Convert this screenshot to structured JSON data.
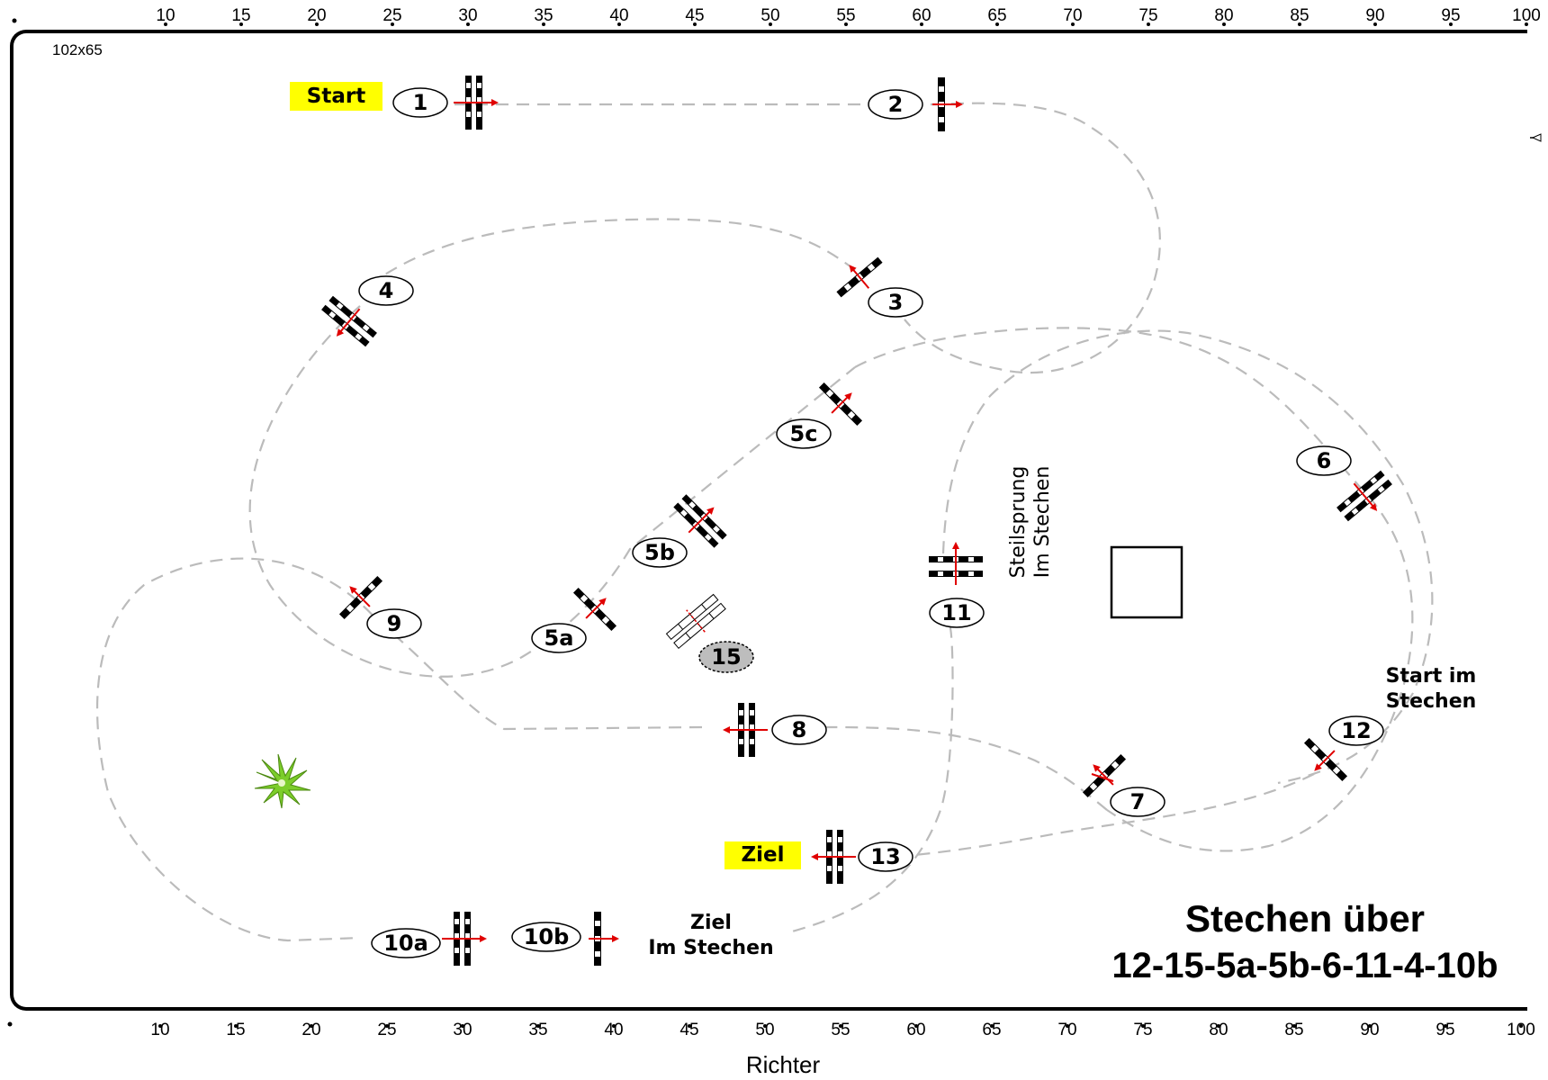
{
  "arena": {
    "size_label": "102x65",
    "start_label": "Start",
    "ziel_label": "Ziel",
    "judge_label": "Richter",
    "title_line1": "Stechen über",
    "title_line2": "12-15-5a-5b-6-11-4-10b",
    "note_ziel_line1": "Ziel",
    "note_ziel_line2": "Im Stechen",
    "note_start_line1": "Start im",
    "note_start_line2": "Stechen",
    "note_steil_line1": "Steilsprung",
    "note_steil_line2": "Im Stechen"
  },
  "ruler_top": [
    "10",
    "15",
    "20",
    "25",
    "30",
    "35",
    "40",
    "45",
    "50",
    "55",
    "60",
    "65",
    "70",
    "75",
    "80",
    "85",
    "90",
    "95",
    "100"
  ],
  "ruler_bottom": [
    "10",
    "15",
    "20",
    "25",
    "30",
    "35",
    "40",
    "45",
    "50",
    "55",
    "60",
    "65",
    "70",
    "75",
    "80",
    "85",
    "90",
    "95",
    "100"
  ],
  "obstacles": [
    {
      "id": "1",
      "label": "1"
    },
    {
      "id": "2",
      "label": "2"
    },
    {
      "id": "3",
      "label": "3"
    },
    {
      "id": "4",
      "label": "4"
    },
    {
      "id": "5a",
      "label": "5a"
    },
    {
      "id": "5b",
      "label": "5b"
    },
    {
      "id": "5c",
      "label": "5c"
    },
    {
      "id": "6",
      "label": "6"
    },
    {
      "id": "7",
      "label": "7"
    },
    {
      "id": "8",
      "label": "8"
    },
    {
      "id": "9",
      "label": "9"
    },
    {
      "id": "10a",
      "label": "10a"
    },
    {
      "id": "10b",
      "label": "10b"
    },
    {
      "id": "11",
      "label": "11"
    },
    {
      "id": "12",
      "label": "12"
    },
    {
      "id": "13",
      "label": "13"
    },
    {
      "id": "15",
      "label": "15"
    }
  ],
  "colors": {
    "route": "#bbbbbb",
    "arrow": "#e00000",
    "highlight": "#ffff00",
    "plant": "#7ccd2a"
  }
}
